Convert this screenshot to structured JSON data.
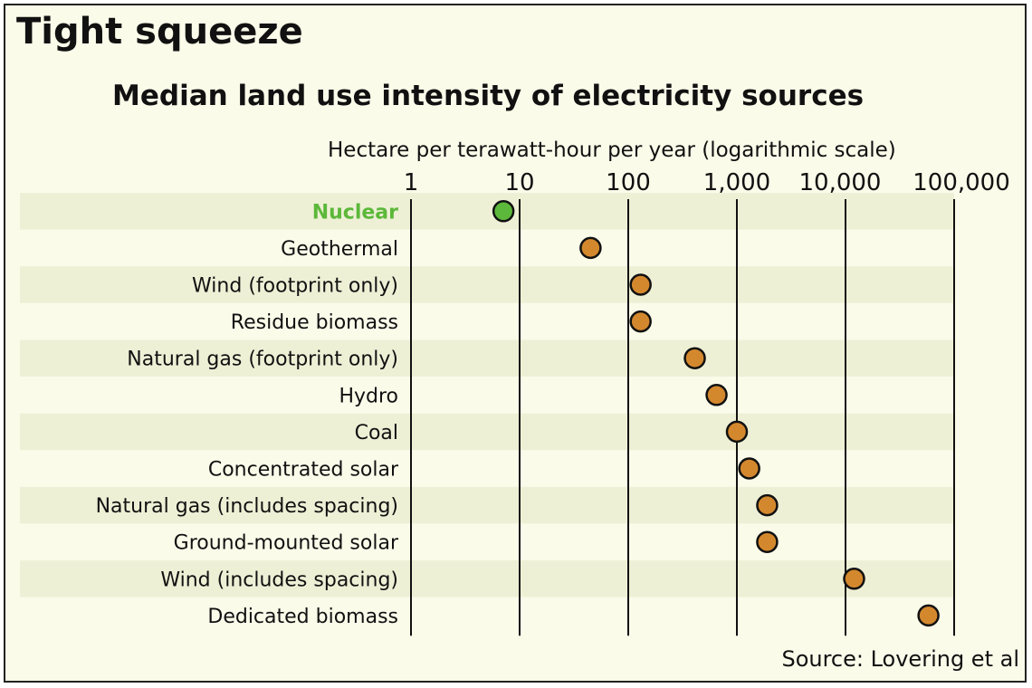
{
  "chart_data": {
    "type": "scatter",
    "heading": "Tight squeeze",
    "title": "Median land use intensity of electricity sources",
    "xlabel": "Hectare per terawatt-hour per year (logarithmic scale)",
    "xscale": "log",
    "xlim": [
      1,
      100000
    ],
    "xticks": [
      1,
      10,
      100,
      1000,
      10000,
      100000
    ],
    "xtick_labels": [
      "1",
      "10",
      "100",
      "1,000",
      "10,000",
      "100,000"
    ],
    "categories": [
      "Nuclear",
      "Geothermal",
      "Wind (footprint only)",
      "Residue biomass",
      "Natural gas (footprint only)",
      "Hydro",
      "Coal",
      "Concentrated solar",
      "Natural gas (includes spacing)",
      "Ground-mounted solar",
      "Wind (includes spacing)",
      "Dedicated biomass"
    ],
    "values": [
      7.1,
      45,
      130,
      130,
      410,
      650,
      1000,
      1300,
      1900,
      1900,
      12000,
      58000
    ],
    "highlight": "Nuclear",
    "source": "Source: Lovering et al",
    "colors": {
      "highlight": "#5cb83a",
      "default": "#d4882e",
      "stripe": "#eef0d6",
      "background": "#fbfbea"
    }
  }
}
